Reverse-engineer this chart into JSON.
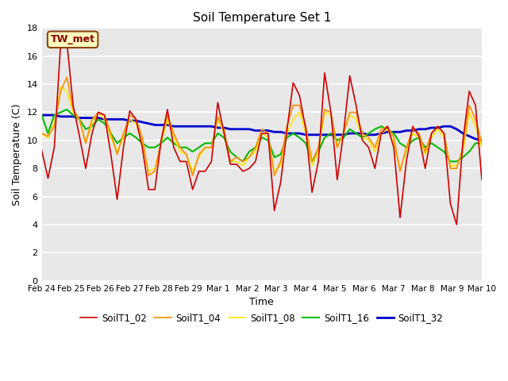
{
  "title": "Soil Temperature Set 1",
  "xlabel": "Time",
  "ylabel": "Soil Temperature (C)",
  "ylim": [
    0,
    18
  ],
  "yticks": [
    0,
    2,
    4,
    6,
    8,
    10,
    12,
    14,
    16,
    18
  ],
  "annotation_text": "TW_met",
  "annotation_color": "#8B0000",
  "annotation_bg": "#FFFFC0",
  "annotation_border": "#8B4513",
  "fig_bg_color": "#FFFFFF",
  "plot_bg_color": "#E8E8E8",
  "series": {
    "SoilT1_02": {
      "color": "#CC0000",
      "linewidth": 1.2,
      "values": [
        9.3,
        7.3,
        9.5,
        16.8,
        17.0,
        12.5,
        10.3,
        8.0,
        10.5,
        12.0,
        11.8,
        9.0,
        5.8,
        9.5,
        12.1,
        11.5,
        9.5,
        6.5,
        6.5,
        10.0,
        12.2,
        9.5,
        8.5,
        8.5,
        6.5,
        7.8,
        7.8,
        8.5,
        12.7,
        10.5,
        8.3,
        8.3,
        7.8,
        8.0,
        8.5,
        10.5,
        10.5,
        5.0,
        7.0,
        10.7,
        14.1,
        13.2,
        10.8,
        6.3,
        8.5,
        14.8,
        12.0,
        7.2,
        10.5,
        14.6,
        12.5,
        10.0,
        9.5,
        8.0,
        10.5,
        11.0,
        9.5,
        4.5,
        8.5,
        11.0,
        10.3,
        8.0,
        10.5,
        11.0,
        10.5,
        5.5,
        4.0,
        10.0,
        13.5,
        12.5,
        7.2
      ]
    },
    "SoilT1_04": {
      "color": "#FF8C00",
      "linewidth": 1.2,
      "values": [
        10.5,
        10.3,
        11.0,
        13.5,
        14.5,
        12.2,
        11.5,
        9.8,
        11.5,
        12.0,
        11.8,
        10.5,
        9.0,
        10.5,
        11.8,
        11.5,
        10.2,
        7.5,
        7.8,
        10.0,
        11.8,
        10.5,
        9.5,
        9.0,
        7.5,
        9.0,
        9.5,
        9.5,
        11.7,
        10.8,
        8.5,
        8.8,
        8.5,
        8.8,
        9.5,
        10.8,
        10.5,
        7.5,
        8.5,
        11.0,
        12.5,
        12.5,
        11.0,
        8.5,
        9.5,
        12.2,
        12.0,
        9.5,
        10.5,
        12.0,
        12.0,
        10.5,
        10.2,
        9.5,
        10.8,
        11.0,
        10.2,
        7.8,
        9.5,
        10.8,
        10.5,
        9.2,
        10.5,
        11.0,
        10.5,
        8.0,
        8.0,
        9.5,
        12.5,
        11.5,
        9.8
      ]
    },
    "SoilT1_08": {
      "color": "#FFE800",
      "linewidth": 1.2,
      "values": [
        10.5,
        10.2,
        11.2,
        13.8,
        13.5,
        12.0,
        11.5,
        9.8,
        11.2,
        12.0,
        11.5,
        10.2,
        9.2,
        10.2,
        11.5,
        11.2,
        9.8,
        7.8,
        8.0,
        9.8,
        11.5,
        10.2,
        9.2,
        9.0,
        7.8,
        8.8,
        9.5,
        9.5,
        11.5,
        10.5,
        8.5,
        8.5,
        8.2,
        8.8,
        9.2,
        10.5,
        10.2,
        7.8,
        8.2,
        10.5,
        11.5,
        12.0,
        10.5,
        8.2,
        9.2,
        12.0,
        11.8,
        9.5,
        10.5,
        11.8,
        11.5,
        10.2,
        10.0,
        9.2,
        10.5,
        10.8,
        9.8,
        8.0,
        9.2,
        10.5,
        10.2,
        9.0,
        10.2,
        10.8,
        10.2,
        8.2,
        8.2,
        9.2,
        12.0,
        11.0,
        9.5
      ]
    },
    "SoilT1_16": {
      "color": "#00BB00",
      "linewidth": 1.5,
      "values": [
        11.8,
        10.5,
        11.8,
        12.0,
        12.2,
        11.8,
        11.5,
        10.8,
        11.0,
        11.5,
        11.2,
        10.5,
        9.8,
        10.2,
        10.5,
        10.2,
        9.8,
        9.5,
        9.5,
        9.8,
        10.2,
        9.8,
        9.5,
        9.5,
        9.2,
        9.5,
        9.8,
        9.8,
        10.5,
        10.2,
        9.2,
        8.8,
        8.5,
        9.2,
        9.5,
        10.2,
        10.0,
        8.8,
        9.0,
        10.2,
        10.5,
        10.2,
        9.8,
        8.5,
        9.2,
        10.2,
        10.5,
        10.0,
        10.2,
        10.8,
        10.5,
        10.2,
        10.5,
        10.8,
        11.0,
        10.8,
        10.5,
        9.8,
        9.5,
        10.0,
        10.2,
        9.5,
        9.8,
        9.5,
        9.2,
        8.5,
        8.5,
        8.8,
        9.2,
        9.8,
        9.8
      ]
    },
    "SoilT1_32": {
      "color": "#0000CC",
      "linewidth": 2.0,
      "values": [
        11.8,
        11.8,
        11.8,
        11.7,
        11.7,
        11.7,
        11.6,
        11.6,
        11.6,
        11.6,
        11.5,
        11.5,
        11.5,
        11.5,
        11.4,
        11.4,
        11.3,
        11.2,
        11.1,
        11.1,
        11.1,
        11.0,
        11.0,
        11.0,
        11.0,
        11.0,
        11.0,
        11.0,
        10.9,
        10.9,
        10.8,
        10.8,
        10.8,
        10.8,
        10.7,
        10.7,
        10.7,
        10.6,
        10.6,
        10.5,
        10.5,
        10.5,
        10.4,
        10.4,
        10.4,
        10.4,
        10.4,
        10.4,
        10.4,
        10.5,
        10.5,
        10.5,
        10.4,
        10.4,
        10.5,
        10.6,
        10.6,
        10.6,
        10.7,
        10.7,
        10.8,
        10.8,
        10.9,
        10.9,
        11.0,
        11.0,
        10.8,
        10.5,
        10.3,
        10.1,
        10.0
      ]
    }
  },
  "xtick_labels": [
    "Feb 24",
    "Feb 25",
    "Feb 26",
    "Feb 27",
    "Feb 28",
    "Feb 29",
    "Mar 1",
    "Mar 2",
    "Mar 3",
    "Mar 4",
    "Mar 5",
    "Mar 6",
    "Mar 7",
    "Mar 8",
    "Mar 9",
    "Mar 10"
  ],
  "xtick_positions": [
    0,
    4.67,
    9.33,
    14,
    18.67,
    23.33,
    28,
    32.67,
    37.33,
    42,
    46.67,
    51.33,
    56,
    60.67,
    65.33,
    70
  ],
  "n_points": 71,
  "legend_labels": [
    "SoilT1_02",
    "SoilT1_04",
    "SoilT1_08",
    "SoilT1_16",
    "SoilT1_32"
  ],
  "legend_colors": [
    "#CC0000",
    "#FF8C00",
    "#FFE800",
    "#00BB00",
    "#0000CC"
  ],
  "legend_linewidths": [
    1.2,
    1.2,
    1.2,
    1.5,
    2.0
  ]
}
